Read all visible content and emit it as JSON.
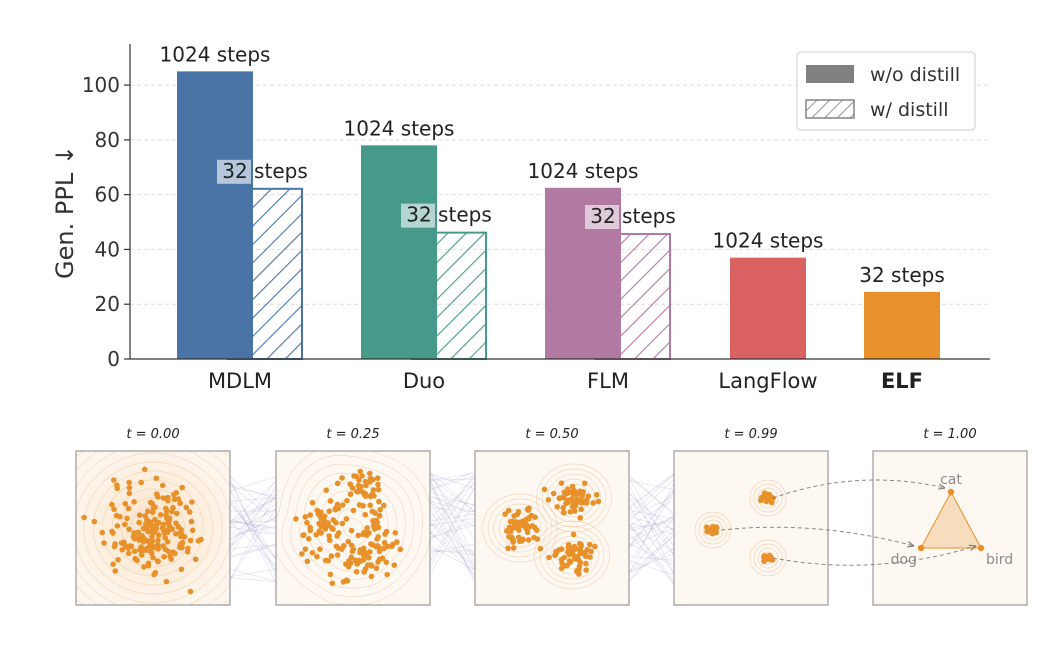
{
  "chart_data": [
    {
      "type": "bar",
      "ylabel": "Gen. PPL ↓",
      "ylim": [
        0,
        115
      ],
      "yticks": [
        0,
        20,
        40,
        60,
        80,
        100
      ],
      "grid": "horizontal dashed",
      "legend": {
        "placement": "top-right",
        "entries": [
          {
            "label": "w/o distill",
            "style": "solid"
          },
          {
            "label": "w/ distill",
            "style": "hatched"
          }
        ]
      },
      "categories": [
        {
          "name": "MDLM",
          "bold": false
        },
        {
          "name": "Duo",
          "bold": false
        },
        {
          "name": "FLM",
          "bold": false
        },
        {
          "name": "LangFlow",
          "bold": false
        },
        {
          "name": "ELF",
          "bold": true
        }
      ],
      "bars": [
        {
          "category": "MDLM",
          "style": "solid",
          "value": 105,
          "label": "1024 steps",
          "color": "#4a74a6"
        },
        {
          "category": "MDLM",
          "style": "hatched",
          "value": 62.5,
          "label": "32 steps",
          "color": "#4a74a6"
        },
        {
          "category": "Duo",
          "style": "solid",
          "value": 78,
          "label": "1024 steps",
          "color": "#469a8a"
        },
        {
          "category": "Duo",
          "style": "hatched",
          "value": 46.5,
          "label": "32 steps",
          "color": "#469a8a"
        },
        {
          "category": "FLM",
          "style": "solid",
          "value": 62.5,
          "label": "1024 steps",
          "color": "#b27aa2"
        },
        {
          "category": "FLM",
          "style": "hatched",
          "value": 46,
          "label": "32 steps",
          "color": "#b27aa2"
        },
        {
          "category": "LangFlow",
          "style": "solid",
          "value": 37,
          "label": "1024 steps",
          "color": "#db6262"
        },
        {
          "category": "ELF",
          "style": "solid",
          "value": 24.5,
          "label": "32 steps",
          "color": "#e8912a"
        }
      ]
    },
    {
      "type": "scatter",
      "panels": [
        {
          "title": "t = 0.00",
          "stage": "gaussian"
        },
        {
          "title": "t = 0.25",
          "stage": "triangular-blob"
        },
        {
          "title": "t = 0.50",
          "stage": "three-clusters"
        },
        {
          "title": "t = 0.99",
          "stage": "three-tight-clusters"
        },
        {
          "title": "t = 1.00",
          "stage": "simplex",
          "vertices": [
            "cat",
            "dog",
            "bird"
          ]
        }
      ],
      "colors": {
        "points": "#e8912a",
        "contours": "#eec29a",
        "flows": "#a598c6",
        "simplex": "#f6d7b4"
      }
    }
  ]
}
